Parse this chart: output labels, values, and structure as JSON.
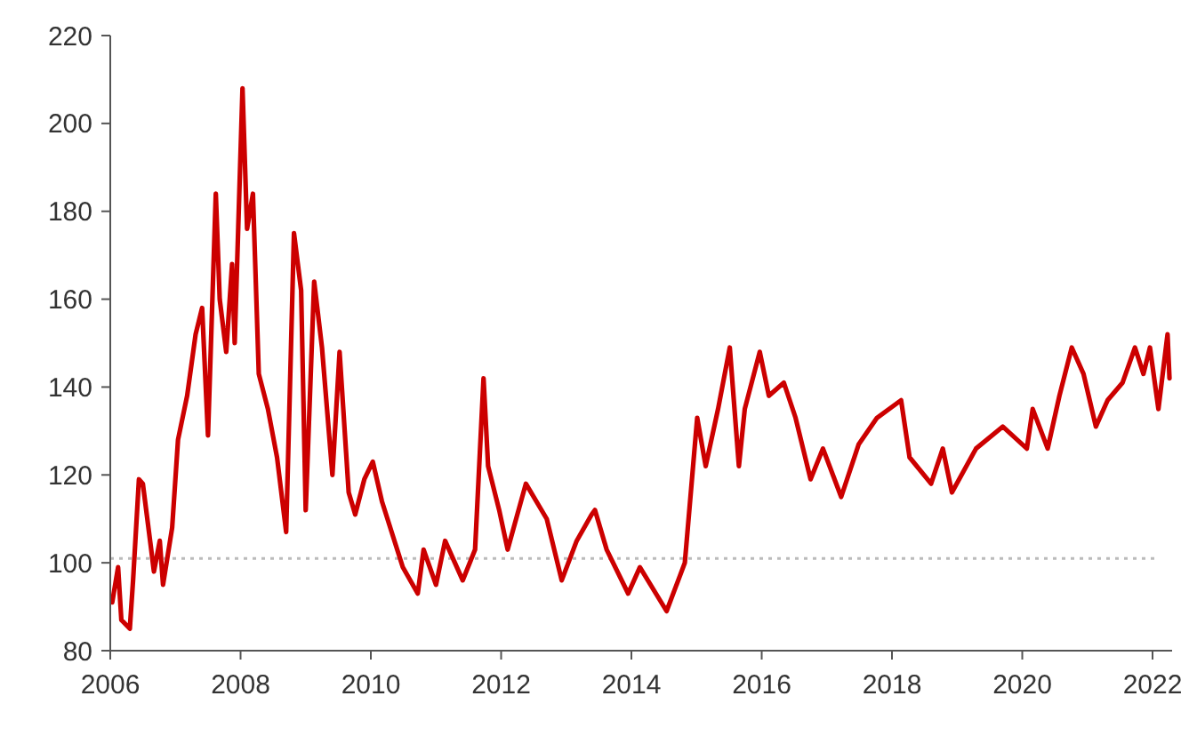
{
  "chart_data": {
    "type": "line",
    "x": [
      2006.03,
      2006.12,
      2006.17,
      2006.3,
      2006.35,
      2006.44,
      2006.5,
      2006.62,
      2006.67,
      2006.76,
      2006.81,
      2006.95,
      2007.04,
      2007.18,
      2007.31,
      2007.41,
      2007.5,
      2007.62,
      2007.68,
      2007.78,
      2007.87,
      2007.91,
      2008.03,
      2008.1,
      2008.19,
      2008.28,
      2008.42,
      2008.56,
      2008.7,
      2008.82,
      2008.93,
      2009,
      2009.13,
      2009.25,
      2009.41,
      2009.52,
      2009.66,
      2009.76,
      2009.9,
      2010.03,
      2010.17,
      2010.49,
      2010.72,
      2010.81,
      2011,
      2011.14,
      2011.41,
      2011.6,
      2011.73,
      2011.8,
      2011.97,
      2012.1,
      2012.38,
      2012.7,
      2012.93,
      2013.16,
      2013.39,
      2013.44,
      2013.62,
      2013.95,
      2014.13,
      2014.54,
      2014.82,
      2015.01,
      2015.14,
      2015.33,
      2015.51,
      2015.65,
      2015.74,
      2015.97,
      2016.11,
      2016.34,
      2016.52,
      2016.75,
      2016.94,
      2017.22,
      2017.49,
      2017.77,
      2018.14,
      2018.27,
      2018.6,
      2018.78,
      2018.92,
      2019.29,
      2019.7,
      2020.07,
      2020.16,
      2020.39,
      2020.57,
      2020.76,
      2020.94,
      2021.13,
      2021.31,
      2021.54,
      2021.73,
      2021.86,
      2021.96,
      2022.09,
      2022.23,
      2022.26
    ],
    "series": [
      {
        "color": "#cc0000",
        "values": [
          91,
          99,
          87,
          85,
          96,
          119,
          118,
          104,
          98,
          105,
          95,
          108,
          128,
          138,
          152,
          158,
          129,
          184,
          160,
          148,
          168,
          150,
          208,
          176,
          184,
          143,
          135,
          124,
          107,
          175,
          162,
          112,
          164,
          149,
          120,
          148,
          116,
          111,
          119,
          123,
          114,
          99,
          93,
          103,
          95,
          105,
          96,
          103,
          142,
          122,
          112,
          103,
          118,
          110,
          96,
          105,
          111,
          112,
          103,
          93,
          99,
          89,
          100,
          133,
          122,
          135,
          149,
          122,
          135,
          148,
          138,
          141,
          133,
          119,
          126,
          115,
          127,
          133,
          137,
          124,
          118,
          126,
          116,
          126,
          131,
          126,
          135,
          126,
          138,
          149,
          143,
          131,
          137,
          141,
          149,
          143,
          149,
          135,
          152,
          142
        ]
      }
    ],
    "xlim": [
      2006,
      2022.3
    ],
    "ylim": [
      80,
      220
    ],
    "xticks": [
      2006,
      2008,
      2010,
      2012,
      2014,
      2016,
      2018,
      2020,
      2022
    ],
    "yticks": [
      80,
      100,
      120,
      140,
      160,
      180,
      200,
      220
    ],
    "ref_lines": [
      {
        "axis": "y",
        "value": 101,
        "color": "#bbbbbb",
        "line_style": "dotted"
      }
    ],
    "grid": false,
    "line_style": "solid"
  }
}
